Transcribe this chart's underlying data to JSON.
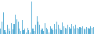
{
  "values": [
    1.5,
    3.5,
    6.0,
    1.0,
    0.5,
    2.5,
    1.5,
    0.8,
    3.0,
    1.2,
    2.8,
    5.5,
    4.0,
    3.5,
    1.5,
    0.8,
    3.8,
    1.0,
    1.5,
    0.5,
    1.8,
    1.0,
    0.5,
    9.0,
    1.5,
    0.8,
    2.5,
    5.0,
    3.5,
    2.5,
    1.0,
    1.5,
    0.8,
    3.0,
    1.8,
    1.2,
    0.5,
    2.2,
    1.5,
    1.0,
    2.8,
    1.2,
    3.5,
    2.5,
    1.5,
    1.0,
    3.2,
    2.2,
    1.8,
    1.5,
    2.5,
    2.0,
    1.5,
    2.8,
    2.2,
    1.5,
    2.5,
    1.8,
    1.5,
    2.0,
    1.8,
    2.2,
    1.5,
    1.2,
    2.0,
    1.8,
    1.5,
    2.2,
    1.8,
    2.0
  ],
  "bar_color": "#5bafd6",
  "background_color": "#ffffff",
  "ylim_min": 0
}
